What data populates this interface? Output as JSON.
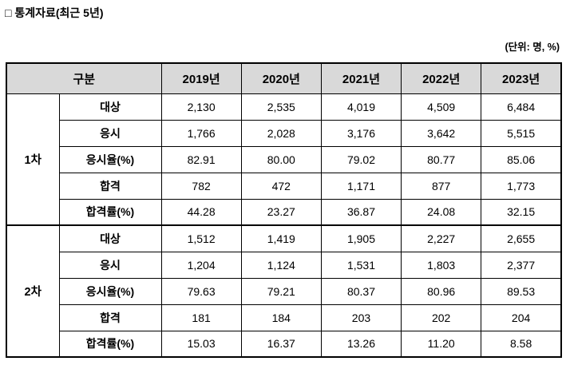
{
  "page": {
    "title": "□ 통계자료(최근 5년)",
    "unit_note": "(단위: 명, %)"
  },
  "colors": {
    "header_bg": "#d9d9d9",
    "border": "#000000",
    "text": "#000000",
    "background": "#ffffff"
  },
  "table": {
    "header": {
      "category_label": "구분",
      "years": [
        "2019년",
        "2020년",
        "2021년",
        "2022년",
        "2023년"
      ]
    },
    "groups": [
      {
        "name": "1차",
        "rows": [
          {
            "label": "대상",
            "values": [
              "2,130",
              "2,535",
              "4,019",
              "4,509",
              "6,484"
            ]
          },
          {
            "label": "응시",
            "values": [
              "1,766",
              "2,028",
              "3,176",
              "3,642",
              "5,515"
            ]
          },
          {
            "label": "응시율(%)",
            "values": [
              "82.91",
              "80.00",
              "79.02",
              "80.77",
              "85.06"
            ]
          },
          {
            "label": "합격",
            "values": [
              "782",
              "472",
              "1,171",
              "877",
              "1,773"
            ]
          },
          {
            "label": "합격률(%)",
            "values": [
              "44.28",
              "23.27",
              "36.87",
              "24.08",
              "32.15"
            ]
          }
        ]
      },
      {
        "name": "2차",
        "rows": [
          {
            "label": "대상",
            "values": [
              "1,512",
              "1,419",
              "1,905",
              "2,227",
              "2,655"
            ]
          },
          {
            "label": "응시",
            "values": [
              "1,204",
              "1,124",
              "1,531",
              "1,803",
              "2,377"
            ]
          },
          {
            "label": "응시율(%)",
            "values": [
              "79.63",
              "79.21",
              "80.37",
              "80.96",
              "89.53"
            ]
          },
          {
            "label": "합격",
            "values": [
              "181",
              "184",
              "203",
              "202",
              "204"
            ]
          },
          {
            "label": "합격률(%)",
            "values": [
              "15.03",
              "16.37",
              "13.26",
              "11.20",
              "8.58"
            ]
          }
        ]
      }
    ]
  }
}
